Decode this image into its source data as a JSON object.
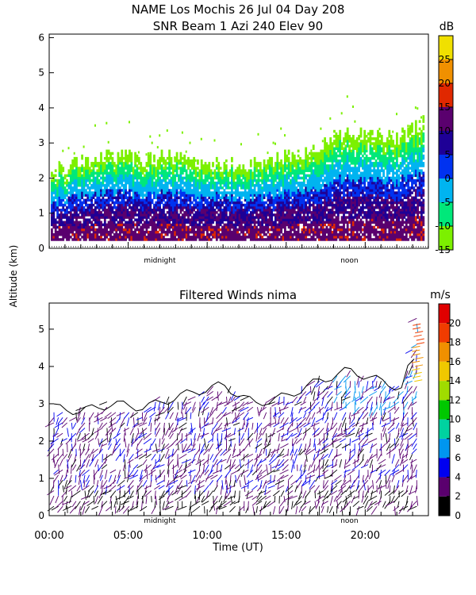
{
  "title_line1": "NAME Los Mochis   26 Jul 04 Day 208",
  "title_line2": "SNR Beam 1 Azi 240 Elev 90",
  "ylabel": "Altitude (km)",
  "xlabel": "Time (UT)",
  "chart_data": [
    {
      "type": "heatmap",
      "title": "SNR Beam 1 Azi 240 Elev 90",
      "xlabel": "",
      "ylabel": "Altitude (km)",
      "y_ticks": [
        0,
        1,
        2,
        3,
        4,
        5,
        6
      ],
      "ylim": [
        0,
        6.1
      ],
      "xlim": [
        0,
        24
      ],
      "x_markers": [
        {
          "label": "midnight",
          "x": 7.0
        },
        {
          "label": "noon",
          "x": 19.0
        }
      ],
      "colorbar": {
        "unit": "dB",
        "ticks": [
          -15,
          -10,
          -5,
          0,
          5,
          10,
          15,
          20,
          25
        ],
        "levels": [
          -15,
          -10,
          -5,
          0,
          5,
          10,
          15,
          20,
          25,
          30
        ],
        "colors": [
          "#7cf000",
          "#00e87a",
          "#00b4f0",
          "#0032f0",
          "#1e0096",
          "#5a006e",
          "#e02800",
          "#f09000",
          "#f0e000"
        ]
      },
      "profile": [
        {
          "t": 0.0,
          "top": 2.1
        },
        {
          "t": 2.0,
          "top": 2.4
        },
        {
          "t": 4.0,
          "top": 2.6
        },
        {
          "t": 6.0,
          "top": 2.5
        },
        {
          "t": 8.0,
          "top": 2.6
        },
        {
          "t": 10.0,
          "top": 2.4
        },
        {
          "t": 12.0,
          "top": 2.3
        },
        {
          "t": 14.0,
          "top": 2.5
        },
        {
          "t": 16.0,
          "top": 2.6
        },
        {
          "t": 18.0,
          "top": 3.2
        },
        {
          "t": 20.0,
          "top": 3.3
        },
        {
          "t": 22.0,
          "top": 3.1
        },
        {
          "t": 23.6,
          "top": 3.6
        }
      ],
      "grid": false
    },
    {
      "type": "scatter",
      "title": "Filtered Winds nima",
      "xlabel": "Time (UT)",
      "ylabel": "Altitude (km)",
      "x_ticks": [
        "00:00",
        "05:00",
        "10:00",
        "15:00",
        "20:00"
      ],
      "x_tick_values": [
        0,
        5,
        10,
        15,
        20
      ],
      "y_ticks": [
        0,
        1,
        2,
        3,
        4,
        5
      ],
      "ylim": [
        0,
        5.7
      ],
      "xlim": [
        0,
        24
      ],
      "x_markers": [
        {
          "label": "midnight",
          "x": 7.0
        },
        {
          "label": "noon",
          "x": 19.0
        }
      ],
      "colorbar": {
        "unit": "m/s",
        "ticks": [
          0,
          2,
          4,
          6,
          8,
          10,
          12,
          14,
          16,
          18,
          20
        ],
        "levels": [
          0,
          2,
          4,
          6,
          8,
          10,
          12,
          14,
          16,
          18,
          20,
          22
        ],
        "colors": [
          "#000000",
          "#5a006e",
          "#0000f0",
          "#0096f0",
          "#00d2a0",
          "#00c800",
          "#a0dc00",
          "#f0c800",
          "#f09000",
          "#f03c00",
          "#e00000"
        ]
      },
      "wind_top_profile": [
        {
          "t": 0.3,
          "top": 2.9
        },
        {
          "t": 2.0,
          "top": 2.8
        },
        {
          "t": 4.0,
          "top": 3.0
        },
        {
          "t": 6.0,
          "top": 2.9
        },
        {
          "t": 7.5,
          "top": 3.1
        },
        {
          "t": 9.0,
          "top": 3.3
        },
        {
          "t": 11.0,
          "top": 3.5
        },
        {
          "t": 13.0,
          "top": 3.0
        },
        {
          "t": 15.0,
          "top": 3.2
        },
        {
          "t": 17.0,
          "top": 3.6
        },
        {
          "t": 19.0,
          "top": 3.9
        },
        {
          "t": 21.0,
          "top": 3.6
        },
        {
          "t": 22.5,
          "top": 3.4
        },
        {
          "t": 23.2,
          "top": 5.2
        }
      ],
      "grid": false
    }
  ]
}
